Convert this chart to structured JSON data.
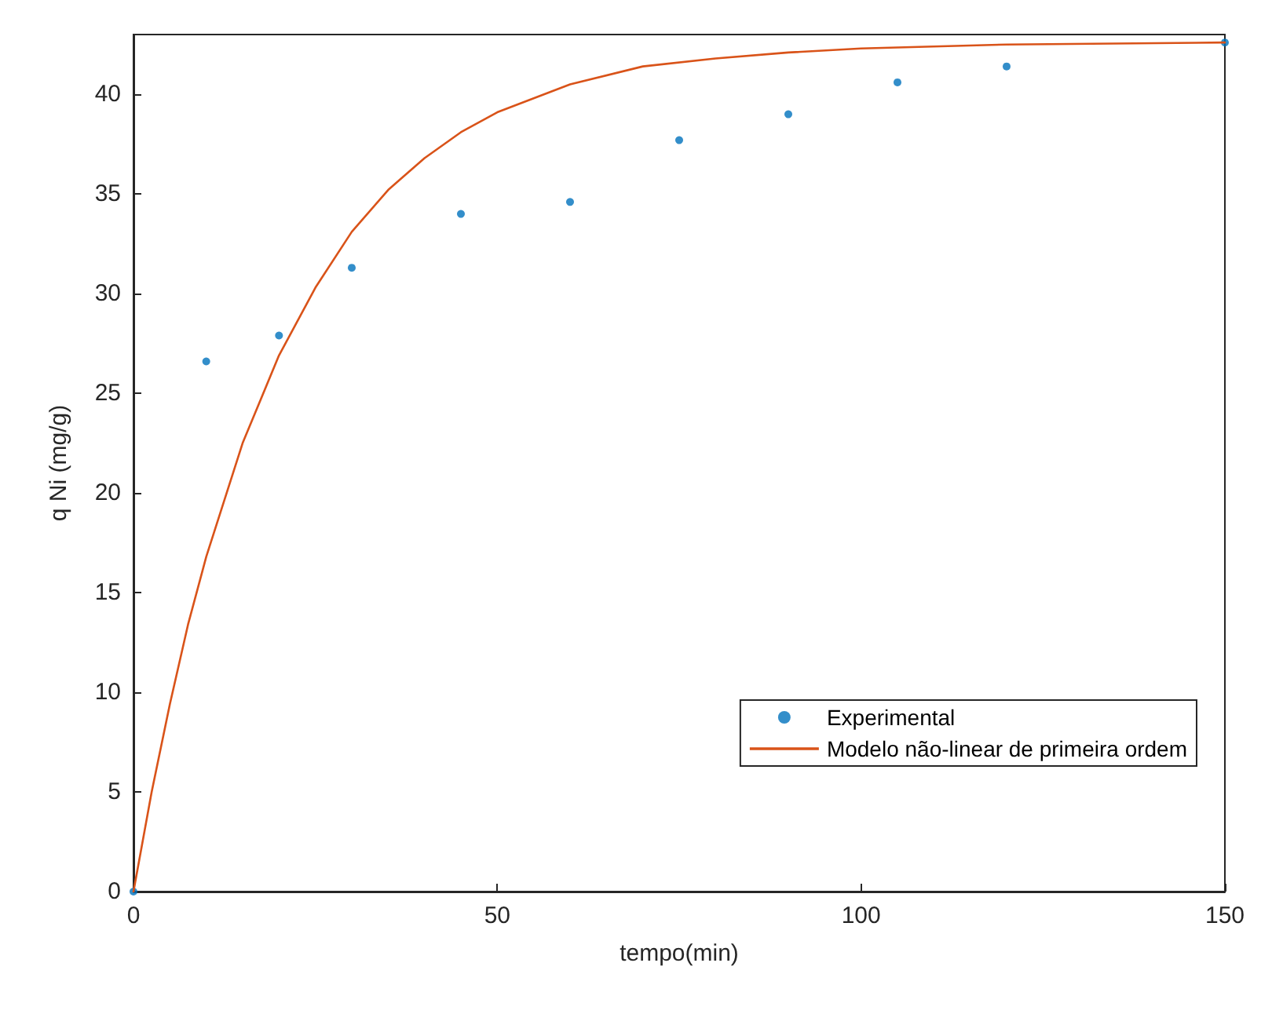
{
  "chart_data": {
    "type": "scatter",
    "xlabel": "tempo(min)",
    "ylabel": "q Ni (mg/g)",
    "xlim": [
      0,
      150
    ],
    "xticks": [
      0,
      50,
      100,
      150
    ],
    "ylim": [
      0,
      43
    ],
    "yticks": [
      0,
      5,
      10,
      15,
      20,
      25,
      30,
      35,
      40
    ],
    "grid": false,
    "legend": "bottom right",
    "series": [
      {
        "name": "Experimental",
        "marker": "circle",
        "color": "#0072bd",
        "x": [
          0,
          10,
          20,
          30,
          45,
          60,
          75,
          90,
          105,
          120,
          150
        ],
        "values": [
          0,
          26.6,
          27.9,
          31.3,
          34.0,
          34.6,
          37.7,
          39.0,
          40.6,
          41.4,
          42.6
        ]
      },
      {
        "name": "Modelo não-linear de primeira ordem",
        "type": "line",
        "marker": "none",
        "line_style": "solid",
        "color": "#d95319",
        "x": [
          0,
          2.5,
          5,
          7.5,
          10,
          15,
          20,
          25,
          30,
          35,
          40,
          45,
          50,
          60,
          70,
          80,
          90,
          100,
          120,
          150
        ],
        "values": [
          0,
          5.0,
          9.4,
          13.4,
          16.8,
          22.5,
          26.9,
          30.3,
          33.1,
          35.2,
          36.8,
          38.1,
          39.1,
          40.5,
          41.4,
          41.8,
          42.1,
          42.3,
          42.5,
          42.6
        ]
      }
    ]
  }
}
